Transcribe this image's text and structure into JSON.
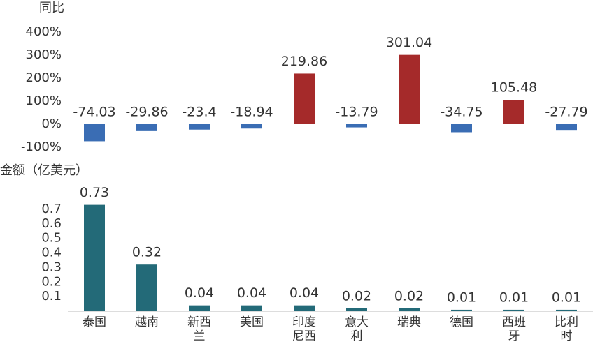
{
  "chart_data": [
    {
      "type": "bar",
      "y_label": "同比",
      "values": [
        -74.03,
        -29.86,
        -23.4,
        -18.94,
        219.86,
        -13.79,
        301.04,
        -34.75,
        105.48,
        -27.79
      ],
      "colors": [
        "#3a6db4",
        "#3a6db4",
        "#3a6db4",
        "#3a6db4",
        "#a52a2a",
        "#3a6db4",
        "#a52a2a",
        "#3a6db4",
        "#a52a2a",
        "#3a6db4"
      ],
      "ylim": [
        -100,
        400
      ],
      "yticks": [
        {
          "value": 400,
          "label": "400%"
        },
        {
          "value": 300,
          "label": "300%"
        },
        {
          "value": 200,
          "label": "200%"
        },
        {
          "value": 100,
          "label": "100%"
        },
        {
          "value": 0,
          "label": "0%"
        },
        {
          "value": -100,
          "label": "-100%"
        }
      ]
    },
    {
      "type": "bar",
      "y_label": "金额（亿美元）",
      "categories": [
        "泰国",
        "越南",
        "新西兰",
        "美国",
        "印度尼西亚",
        "意大利",
        "瑞典",
        "德国",
        "西班牙",
        "比利时"
      ],
      "values": [
        0.73,
        0.32,
        0.04,
        0.04,
        0.04,
        0.02,
        0.02,
        0.01,
        0.01,
        0.01
      ],
      "color": "#236a78",
      "ylim": [
        0,
        0.8
      ],
      "yticks": [
        0.1,
        0.2,
        0.3,
        0.4,
        0.5,
        0.6,
        0.7
      ]
    }
  ]
}
